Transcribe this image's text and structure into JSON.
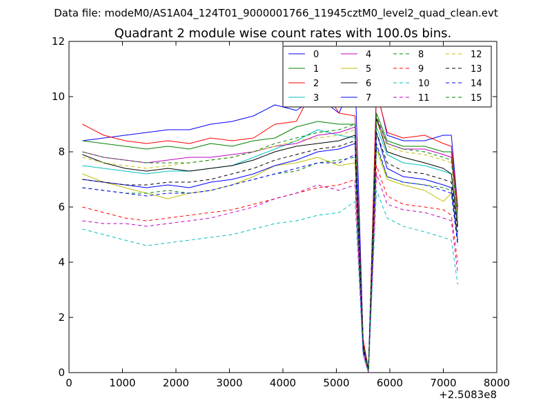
{
  "suptitle": "Data file: modeM0/AS1A04_124T01_9000001766_11945cztM0_level2_quad_clean.evt",
  "chart_data": {
    "type": "line",
    "title": "Quadrant 2 module wise count rates with 100.0s bins.",
    "xlabel": "",
    "ylabel": "",
    "x_offset_label": "+2.5083e8",
    "xlim": [
      0,
      8000
    ],
    "ylim": [
      0,
      12
    ],
    "xticks": [
      "0",
      "1000",
      "2000",
      "3000",
      "4000",
      "5000",
      "6000",
      "7000",
      "8000"
    ],
    "yticks": [
      "0",
      "2",
      "4",
      "6",
      "8",
      "10",
      "12"
    ],
    "legend_position": "top-right",
    "x": [
      250,
      650,
      1050,
      1450,
      1850,
      2250,
      2650,
      3050,
      3450,
      3850,
      4250,
      4650,
      5050,
      5350,
      5500,
      5600,
      5750,
      5950,
      6250,
      6650,
      7000,
      7150,
      7270
    ],
    "series": [
      {
        "name": "0",
        "color": "#0000ff",
        "dash": false,
        "values": [
          8.4,
          8.5,
          8.6,
          8.7,
          8.8,
          8.8,
          9.0,
          9.1,
          9.3,
          9.7,
          9.5,
          10.0,
          9.4,
          10.8,
          1.2,
          0.1,
          10.3,
          8.6,
          8.4,
          8.4,
          8.6,
          8.6,
          6.0
        ]
      },
      {
        "name": "1",
        "color": "#008000",
        "dash": false,
        "values": [
          8.4,
          8.3,
          8.2,
          8.1,
          8.2,
          8.1,
          8.3,
          8.2,
          8.4,
          8.5,
          8.9,
          9.1,
          9.0,
          9.0,
          1.1,
          0.1,
          9.4,
          8.4,
          8.2,
          8.2,
          8.0,
          8.0,
          5.9
        ]
      },
      {
        "name": "2",
        "color": "#ff0000",
        "dash": false,
        "values": [
          9.0,
          8.6,
          8.4,
          8.3,
          8.4,
          8.3,
          8.5,
          8.4,
          8.5,
          9.0,
          9.1,
          10.6,
          9.4,
          9.3,
          1.2,
          0.1,
          10.2,
          8.7,
          8.5,
          8.6,
          8.3,
          8.2,
          6.0
        ]
      },
      {
        "name": "3",
        "color": "#00bfbf",
        "dash": false,
        "values": [
          7.5,
          7.4,
          7.3,
          7.2,
          7.3,
          7.3,
          7.4,
          7.5,
          7.8,
          8.1,
          8.4,
          8.8,
          8.6,
          8.5,
          1.0,
          0.1,
          8.9,
          7.9,
          7.6,
          7.5,
          7.3,
          7.2,
          5.4
        ]
      },
      {
        "name": "4",
        "color": "#bf00bf",
        "dash": false,
        "values": [
          8.0,
          7.8,
          7.7,
          7.6,
          7.7,
          7.8,
          7.8,
          7.9,
          8.0,
          8.2,
          8.3,
          8.6,
          8.7,
          8.9,
          1.0,
          0.1,
          9.2,
          8.3,
          8.1,
          8.1,
          7.9,
          7.8,
          5.6
        ]
      },
      {
        "name": "5",
        "color": "#bfbf00",
        "dash": false,
        "values": [
          7.2,
          6.9,
          6.7,
          6.5,
          6.3,
          6.5,
          6.6,
          6.8,
          7.1,
          7.5,
          7.6,
          7.8,
          7.5,
          7.6,
          0.9,
          0.0,
          8.1,
          7.0,
          6.8,
          6.6,
          6.2,
          6.5,
          5.0
        ]
      },
      {
        "name": "6",
        "color": "#000000",
        "dash": false,
        "values": [
          7.9,
          7.6,
          7.4,
          7.3,
          7.4,
          7.3,
          7.4,
          7.5,
          7.7,
          8.0,
          8.2,
          8.3,
          8.4,
          8.6,
          1.0,
          0.1,
          9.2,
          8.0,
          7.8,
          7.6,
          7.4,
          7.2,
          5.3
        ]
      },
      {
        "name": "7",
        "color": "#0000ff",
        "dash": false,
        "values": [
          7.0,
          6.9,
          6.8,
          6.7,
          6.8,
          6.7,
          6.9,
          7.0,
          7.2,
          7.5,
          7.7,
          8.0,
          8.1,
          8.3,
          0.9,
          0.1,
          8.7,
          7.4,
          7.1,
          7.0,
          6.8,
          6.7,
          4.8
        ]
      },
      {
        "name": "8",
        "color": "#008000",
        "dash": true,
        "values": [
          6.7,
          6.6,
          6.5,
          6.5,
          6.6,
          6.5,
          6.6,
          6.8,
          7.0,
          7.2,
          7.3,
          7.6,
          7.7,
          7.8,
          0.8,
          0.1,
          8.2,
          7.1,
          6.9,
          6.8,
          6.7,
          6.6,
          4.7
        ]
      },
      {
        "name": "9",
        "color": "#ff0000",
        "dash": true,
        "values": [
          6.0,
          5.8,
          5.6,
          5.5,
          5.6,
          5.7,
          5.8,
          5.9,
          6.1,
          6.3,
          6.5,
          6.7,
          6.8,
          7.0,
          0.8,
          0.0,
          7.5,
          6.4,
          6.1,
          6.0,
          5.9,
          5.7,
          4.0
        ]
      },
      {
        "name": "10",
        "color": "#00bfbf",
        "dash": true,
        "values": [
          5.2,
          5.0,
          4.8,
          4.6,
          4.7,
          4.8,
          4.9,
          5.0,
          5.2,
          5.4,
          5.5,
          5.7,
          5.8,
          6.2,
          0.6,
          0.0,
          6.6,
          5.6,
          5.3,
          5.1,
          4.9,
          4.8,
          3.2
        ]
      },
      {
        "name": "11",
        "color": "#bf00bf",
        "dash": true,
        "values": [
          5.5,
          5.4,
          5.4,
          5.3,
          5.4,
          5.5,
          5.6,
          5.8,
          6.0,
          6.3,
          6.5,
          6.8,
          6.6,
          6.8,
          0.7,
          0.0,
          7.2,
          6.1,
          5.9,
          5.8,
          5.6,
          5.5,
          3.6
        ]
      },
      {
        "name": "12",
        "color": "#bfbf00",
        "dash": true,
        "values": [
          7.8,
          7.6,
          7.5,
          7.4,
          7.5,
          7.6,
          7.7,
          7.8,
          8.0,
          8.2,
          8.4,
          8.5,
          8.6,
          8.8,
          1.0,
          0.1,
          9.1,
          8.2,
          8.0,
          7.9,
          7.7,
          7.6,
          5.5
        ]
      },
      {
        "name": "13",
        "color": "#000000",
        "dash": true,
        "values": [
          7.0,
          6.9,
          6.8,
          6.8,
          6.9,
          6.9,
          7.0,
          7.2,
          7.4,
          7.7,
          7.9,
          8.1,
          8.2,
          8.4,
          0.9,
          0.1,
          8.7,
          7.6,
          7.3,
          7.2,
          7.0,
          6.9,
          5.1
        ]
      },
      {
        "name": "14",
        "color": "#0000ff",
        "dash": true,
        "values": [
          6.7,
          6.6,
          6.5,
          6.4,
          6.5,
          6.5,
          6.6,
          6.8,
          7.0,
          7.2,
          7.4,
          7.6,
          7.6,
          7.9,
          0.8,
          0.1,
          8.3,
          7.1,
          6.9,
          6.8,
          6.6,
          6.5,
          4.6
        ]
      },
      {
        "name": "15",
        "color": "#008000",
        "dash": true,
        "values": [
          8.0,
          7.8,
          7.7,
          7.6,
          7.6,
          7.6,
          7.7,
          7.8,
          8.0,
          8.3,
          8.5,
          8.7,
          8.8,
          9.0,
          1.0,
          0.1,
          9.3,
          8.3,
          8.1,
          8.0,
          7.8,
          7.7,
          5.7
        ]
      }
    ]
  }
}
